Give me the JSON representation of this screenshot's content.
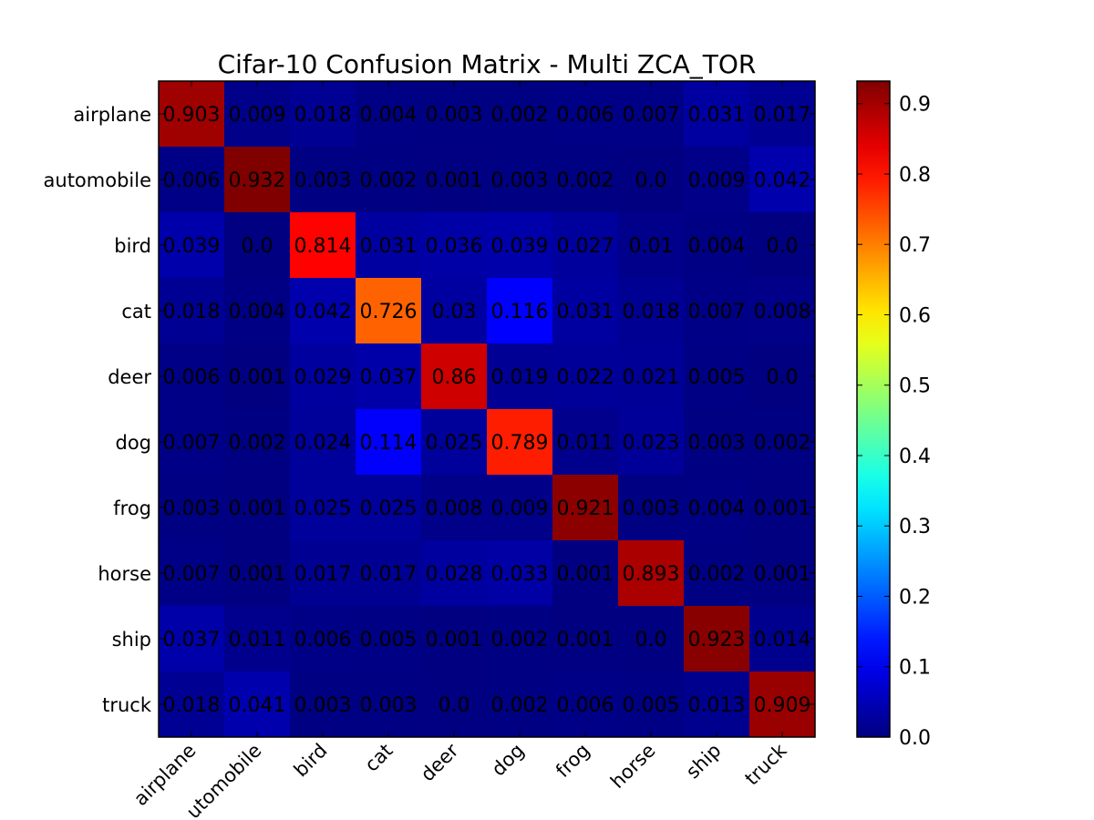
{
  "chart_data": {
    "type": "heatmap",
    "title": "Cifar-10 Confusion Matrix - Multi ZCA_TOR",
    "row_labels": [
      "airplane",
      "automobile",
      "bird",
      "cat",
      "deer",
      "dog",
      "frog",
      "horse",
      "ship",
      "truck"
    ],
    "col_labels": [
      "airplane",
      "automobile",
      "bird",
      "cat",
      "deer",
      "dog",
      "frog",
      "horse",
      "ship",
      "truck"
    ],
    "col_labels_display": [
      "airplane",
      "utomobile",
      "bird",
      "cat",
      "deer",
      "dog",
      "frog",
      "horse",
      "ship",
      "truck"
    ],
    "values": [
      [
        0.903,
        0.009,
        0.018,
        0.004,
        0.003,
        0.002,
        0.006,
        0.007,
        0.031,
        0.017
      ],
      [
        0.006,
        0.932,
        0.003,
        0.002,
        0.001,
        0.003,
        0.002,
        0.0,
        0.009,
        0.042
      ],
      [
        0.039,
        0.0,
        0.814,
        0.031,
        0.036,
        0.039,
        0.027,
        0.01,
        0.004,
        0.0
      ],
      [
        0.018,
        0.004,
        0.042,
        0.726,
        0.03,
        0.116,
        0.031,
        0.018,
        0.007,
        0.008
      ],
      [
        0.006,
        0.001,
        0.029,
        0.037,
        0.86,
        0.019,
        0.022,
        0.021,
        0.005,
        0.0
      ],
      [
        0.007,
        0.002,
        0.024,
        0.114,
        0.025,
        0.789,
        0.011,
        0.023,
        0.003,
        0.002
      ],
      [
        0.003,
        0.001,
        0.025,
        0.025,
        0.008,
        0.009,
        0.921,
        0.003,
        0.004,
        0.001
      ],
      [
        0.007,
        0.001,
        0.017,
        0.017,
        0.028,
        0.033,
        0.001,
        0.893,
        0.002,
        0.001
      ],
      [
        0.037,
        0.011,
        0.006,
        0.005,
        0.001,
        0.002,
        0.001,
        0.0,
        0.923,
        0.014
      ],
      [
        0.018,
        0.041,
        0.003,
        0.003,
        0.0,
        0.002,
        0.006,
        0.005,
        0.013,
        0.909
      ]
    ],
    "cell_labels": [
      [
        "0.903",
        "0.009",
        "0.018",
        "0.004",
        "0.003",
        "0.002",
        "0.006",
        "0.007",
        "0.031",
        "0.017"
      ],
      [
        "0.006",
        "0.932",
        "0.003",
        "0.002",
        "0.001",
        "0.003",
        "0.002",
        "0.0",
        "0.009",
        "0.042"
      ],
      [
        "0.039",
        "0.0",
        "0.814",
        "0.031",
        "0.036",
        "0.039",
        "0.027",
        "0.01",
        "0.004",
        "0.0"
      ],
      [
        "0.018",
        "0.004",
        "0.042",
        "0.726",
        "0.03",
        "0.116",
        "0.031",
        "0.018",
        "0.007",
        "0.008"
      ],
      [
        "0.006",
        "0.001",
        "0.029",
        "0.037",
        "0.86",
        "0.019",
        "0.022",
        "0.021",
        "0.005",
        "0.0"
      ],
      [
        "0.007",
        "0.002",
        "0.024",
        "0.114",
        "0.025",
        "0.789",
        "0.011",
        "0.023",
        "0.003",
        "0.002"
      ],
      [
        "0.003",
        "0.001",
        "0.025",
        "0.025",
        "0.008",
        "0.009",
        "0.921",
        "0.003",
        "0.004",
        "0.001"
      ],
      [
        "0.007",
        "0.001",
        "0.017",
        "0.017",
        "0.028",
        "0.033",
        "0.001",
        "0.893",
        "0.002",
        "0.001"
      ],
      [
        "0.037",
        "0.011",
        "0.006",
        "0.005",
        "0.001",
        "0.002",
        "0.001",
        "0.0",
        "0.923",
        "0.014"
      ],
      [
        "0.018",
        "0.041",
        "0.003",
        "0.003",
        "0.0",
        "0.002",
        "0.006",
        "0.005",
        "0.013",
        "0.909"
      ]
    ],
    "colormap": "jet",
    "vmin": 0.0,
    "vmax": 0.932,
    "colorbar_ticks": [
      0.0,
      0.1,
      0.2,
      0.3,
      0.4,
      0.5,
      0.6,
      0.7,
      0.8,
      0.9
    ],
    "colorbar_tick_labels": [
      "0.0",
      "0.1",
      "0.2",
      "0.3",
      "0.4",
      "0.5",
      "0.6",
      "0.7",
      "0.8",
      "0.9"
    ],
    "grid": false,
    "colorbar_placement": "right"
  }
}
